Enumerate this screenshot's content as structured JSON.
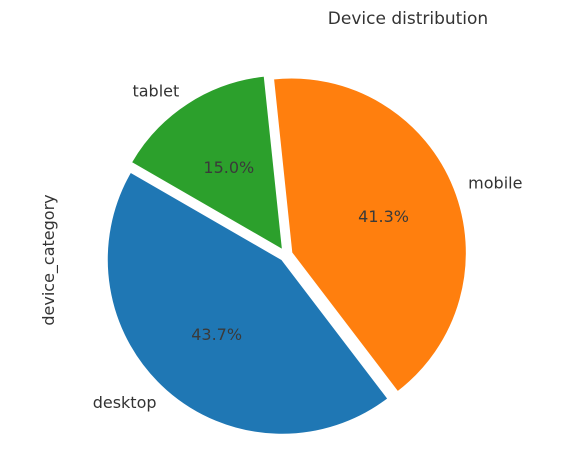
{
  "chart_data": {
    "type": "pie",
    "title": "Device distribution",
    "ylabel": "device_category",
    "xlabel": "",
    "categories": [
      "desktop",
      "mobile",
      "tablet"
    ],
    "values": [
      43.7,
      41.3,
      15.0
    ],
    "percent_labels": [
      "43.7%",
      "41.3%",
      "15.0%"
    ],
    "colors": [
      "#1f77b4",
      "#ff7f0e",
      "#2ca02c"
    ],
    "exploded": true,
    "legend": "none"
  }
}
